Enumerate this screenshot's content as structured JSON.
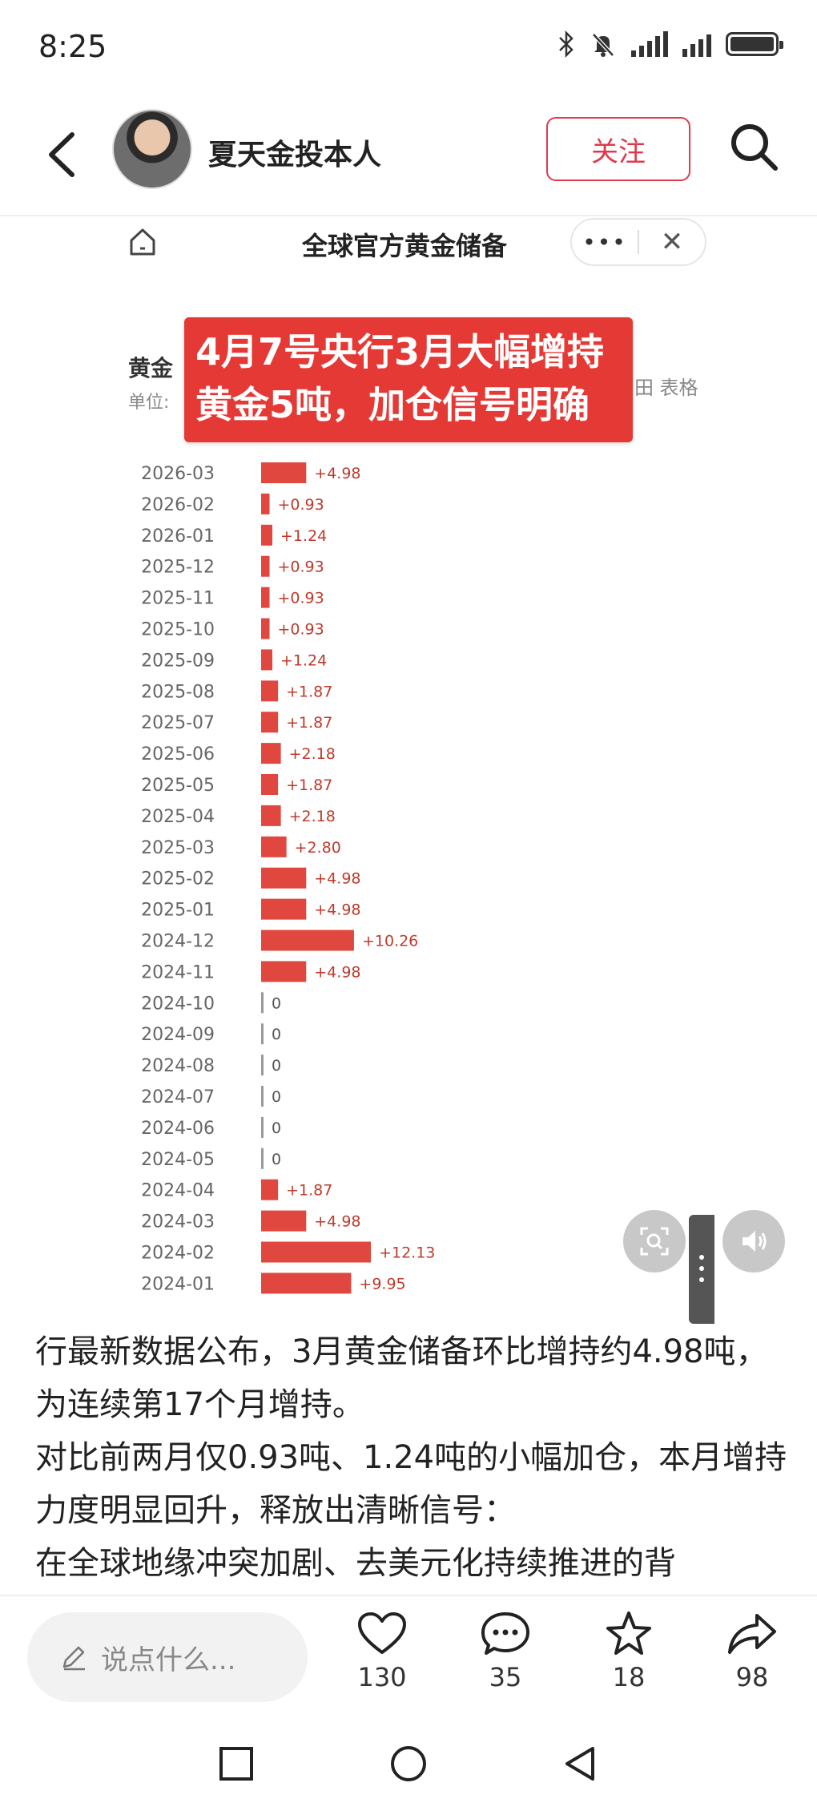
{
  "status_bar": {
    "time": "8:25"
  },
  "header": {
    "author_name": "夏天金投本人",
    "follow_label": "关注"
  },
  "screenshot": {
    "page_title": "全球官方黄金储备",
    "chart_title_partial": "黄金",
    "chart_unit_partial": "单位:",
    "table_toggle": "田 表格",
    "banner_line1": "4月7号央行3月大幅增持",
    "banner_line2": "黄金5吨，加仓信号明确"
  },
  "chart_data": {
    "type": "bar",
    "orientation": "horizontal",
    "categories": [
      "2026-03",
      "2026-02",
      "2026-01",
      "2025-12",
      "2025-11",
      "2025-10",
      "2025-09",
      "2025-08",
      "2025-07",
      "2025-06",
      "2025-05",
      "2025-04",
      "2025-03",
      "2025-02",
      "2025-01",
      "2024-12",
      "2024-11",
      "2024-10",
      "2024-09",
      "2024-08",
      "2024-07",
      "2024-06",
      "2024-05",
      "2024-04",
      "2024-03",
      "2024-02",
      "2024-01"
    ],
    "values": [
      4.98,
      0.93,
      1.24,
      0.93,
      0.93,
      0.93,
      1.24,
      1.87,
      1.87,
      2.18,
      1.87,
      2.18,
      2.8,
      4.98,
      4.98,
      10.26,
      4.98,
      0,
      0,
      0,
      0,
      0,
      0,
      1.87,
      4.98,
      12.13,
      9.95
    ],
    "labels": [
      "+4.98",
      "+0.93",
      "+1.24",
      "+0.93",
      "+0.93",
      "+0.93",
      "+1.24",
      "+1.87",
      "+1.87",
      "+2.18",
      "+1.87",
      "+2.18",
      "+2.80",
      "+4.98",
      "+4.98",
      "+10.26",
      "+4.98",
      "0",
      "0",
      "0",
      "0",
      "0",
      "0",
      "+1.87",
      "+4.98",
      "+12.13",
      "+9.95"
    ],
    "bar_color": "#e0473e",
    "zero_color": "#999999",
    "label_color": "#c0392b"
  },
  "article": {
    "lines": [
      "行最新数据公布，3月黄金储备环比增持约4.98吨，为连续第17个月增持。",
      "对比前两月仅0.93吨、1.24吨的小幅加仓，本月增持力度明显回升，释放出清晰信号：",
      "在全球地缘冲突加剧、去美元化持续推进的背"
    ]
  },
  "action_bar": {
    "comment_placeholder": "说点什么...",
    "like_count": "130",
    "comment_count": "35",
    "favorite_count": "18",
    "share_count": "98"
  },
  "colors": {
    "accent": "#e03a4a",
    "bar": "#e0473e",
    "banner": "#e53935"
  }
}
